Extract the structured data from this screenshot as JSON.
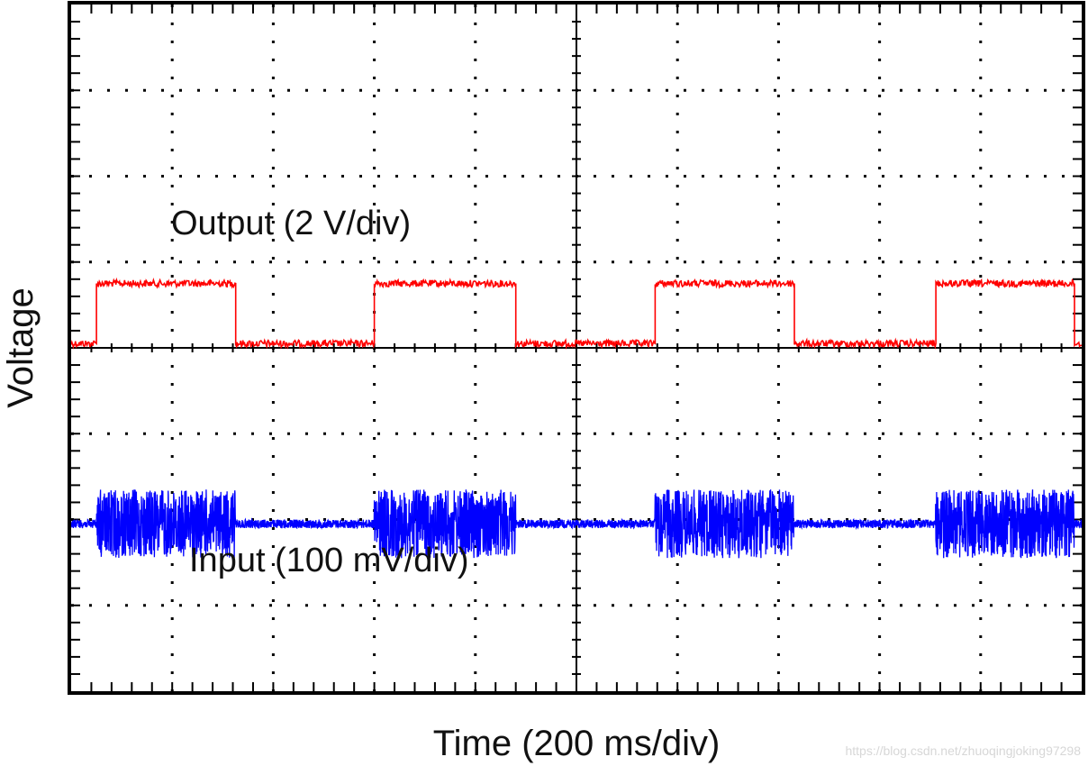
{
  "chart_data": {
    "type": "line",
    "title": "",
    "xlabel": "Time (200 ms/div)",
    "ylabel": "Voltage",
    "x_divisions": 10,
    "y_divisions": 8,
    "grid": true,
    "xlim": [
      0,
      2000
    ],
    "x_unit": "ms",
    "series": [
      {
        "name": "Output",
        "label": "Output (2 V/div)",
        "color": "#ff0000",
        "scale": "2 V/div",
        "baseline_div": 4.1,
        "high_level_div": 0.75,
        "noise_div": 0.04,
        "x": [
          0,
          50,
          50,
          325,
          325,
          600,
          600,
          880,
          880,
          1155,
          1155,
          1430,
          1430,
          1710,
          1710,
          1985,
          1985,
          2000
        ],
        "y": [
          0,
          0,
          1,
          1,
          0,
          0,
          1,
          1,
          0,
          0,
          1,
          1,
          0,
          0,
          1,
          1,
          0,
          0
        ]
      },
      {
        "name": "Input",
        "label": "Input (100 mV/div)",
        "color": "#0000ff",
        "scale": "100 mV/div",
        "baseline_div": 2.05,
        "burst_half_amplitude_div": 0.4,
        "idle_noise_div": 0.05,
        "x": [
          0,
          50,
          50,
          325,
          325,
          600,
          600,
          880,
          880,
          1155,
          1155,
          1430,
          1430,
          1710,
          1710,
          1985,
          1985,
          2000
        ],
        "burst": [
          0,
          0,
          1,
          1,
          0,
          0,
          1,
          1,
          0,
          0,
          1,
          1,
          0,
          0,
          1,
          1,
          0,
          0
        ]
      }
    ],
    "annotations": [
      {
        "text": "Output (2 V/div)",
        "series": "Output"
      },
      {
        "text": "Input (100 mV/div)",
        "series": "Input"
      }
    ]
  },
  "watermark": "https://blog.csdn.net/zhuoqingjoking97298"
}
